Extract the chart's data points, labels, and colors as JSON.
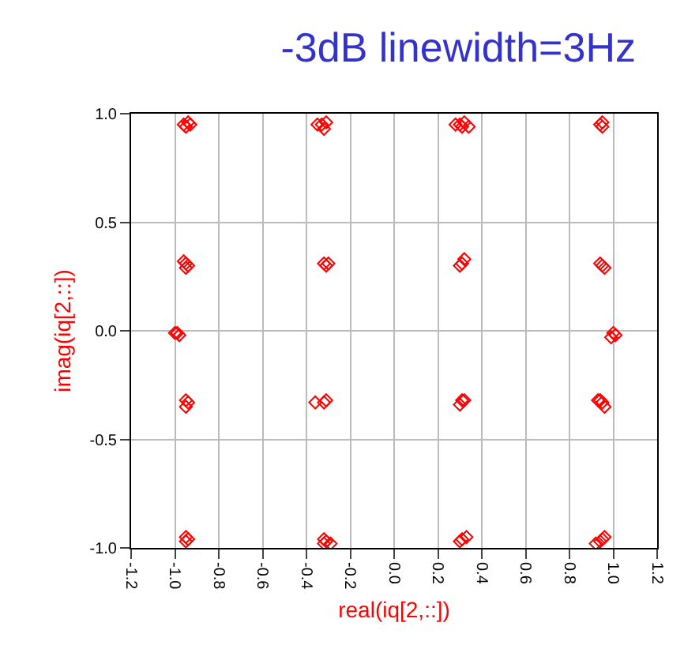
{
  "chart_data": {
    "type": "scatter",
    "title": "-3dB linewidth=3Hz",
    "xlabel": "real(iq[2,::])",
    "ylabel": "imag(iq[2,::])",
    "xlim": [
      -1.2,
      1.2
    ],
    "xticks": [
      -1.2,
      {
        "value": -1,
        "label": "-1.0"
      },
      -0.8,
      -0.6,
      -0.4,
      -0.2,
      {
        "value": 0,
        "label": "0.0"
      },
      0.2,
      0.4,
      0.6,
      0.8,
      {
        "value": 1,
        "label": "1.0"
      },
      1.2
    ],
    "ylim": [
      -1.0,
      1.0
    ],
    "yticks": [
      {
        "value": -1,
        "label": "-1.0"
      },
      -0.5,
      {
        "value": 0,
        "label": "0.0"
      },
      0.5,
      {
        "value": 1,
        "label": "1.0"
      }
    ],
    "grid": true,
    "marker": "diamond",
    "series": [
      {
        "color": "#ff0000",
        "x": [
          -0.96,
          -0.94,
          -0.95,
          -0.93,
          -0.33,
          -0.31,
          -0.32,
          -0.35,
          0.3,
          0.32,
          0.31,
          0.28,
          0.34,
          0.94,
          0.95,
          0.95,
          -0.95,
          -0.94,
          -0.96,
          -0.95,
          -0.32,
          -0.31,
          -0.3,
          0.3,
          0.31,
          0.32,
          0.94,
          0.95,
          0.96,
          -0.99,
          -1.0,
          -0.98,
          1.0,
          1.01,
          0.99,
          -0.95,
          -0.94,
          -0.95,
          -0.32,
          -0.31,
          -0.36,
          0.31,
          0.3,
          0.32,
          0.94,
          0.95,
          0.93,
          0.96,
          -0.95,
          -0.94,
          -0.95,
          -0.32,
          -0.31,
          -0.32,
          -0.29,
          0.3,
          0.31,
          0.33,
          0.94,
          0.95,
          0.92,
          0.96
        ],
        "values": [
          0.95,
          0.96,
          0.94,
          0.95,
          0.95,
          0.96,
          0.93,
          0.95,
          0.95,
          0.96,
          0.94,
          0.95,
          0.94,
          0.95,
          0.94,
          0.96,
          0.31,
          0.3,
          0.32,
          0.29,
          0.31,
          0.3,
          0.31,
          0.3,
          0.31,
          0.33,
          0.31,
          0.3,
          0.29,
          -0.01,
          -0.01,
          -0.02,
          -0.01,
          -0.02,
          -0.03,
          -0.32,
          -0.33,
          -0.35,
          -0.33,
          -0.32,
          -0.33,
          -0.32,
          -0.34,
          -0.32,
          -0.32,
          -0.33,
          -0.32,
          -0.35,
          -0.95,
          -0.96,
          -0.97,
          -0.96,
          -0.97,
          -0.98,
          -0.98,
          -0.97,
          -0.96,
          -0.95,
          -0.97,
          -0.96,
          -0.98,
          -0.95
        ]
      }
    ]
  }
}
